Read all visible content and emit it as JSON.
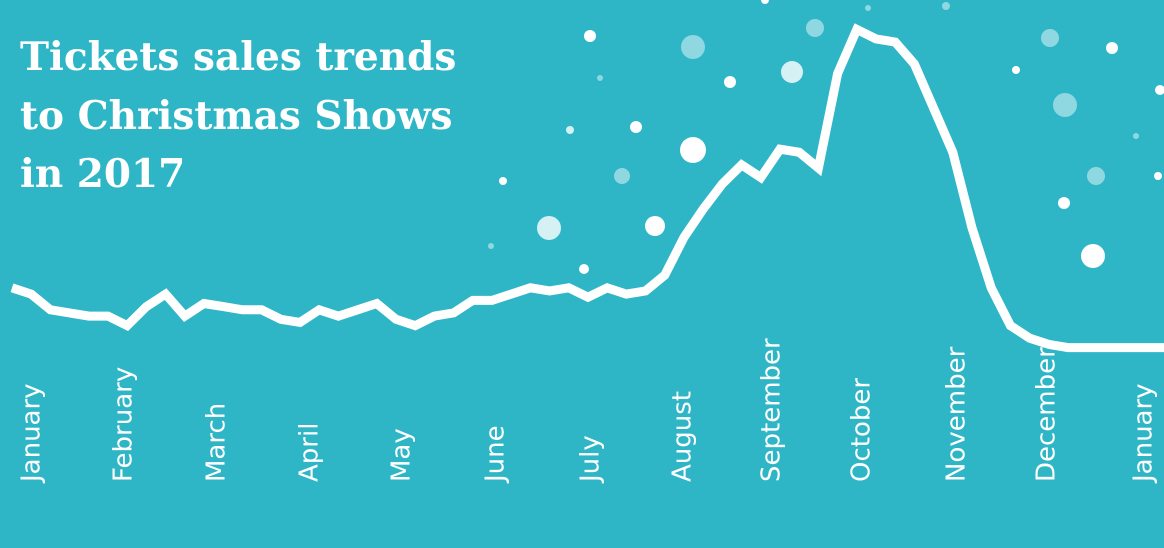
{
  "page": {
    "background": "#2fb6c6",
    "foreground": "#ffffff",
    "snow_colors": [
      "#ffffff",
      "#d5f1f4",
      "#8fd8e1",
      "#66cdd8"
    ]
  },
  "chart_data": {
    "type": "line",
    "title": "Tickets sales trends\nto Christmas Shows\nin 2017",
    "xlabel": "",
    "ylabel": "",
    "grid": false,
    "legend": "none",
    "tick_labels": [
      "January",
      "February",
      "March",
      "April",
      "May",
      "June",
      "July",
      "August",
      "September",
      "October",
      "November",
      "December",
      "January"
    ],
    "x_range": [
      0,
      12
    ],
    "ylim": [
      0,
      100
    ],
    "series": [
      {
        "x": [
          0,
          0.2,
          0.4,
          0.6,
          0.8,
          1,
          1.2,
          1.4,
          1.6,
          1.8,
          2,
          2.2,
          2.4,
          2.6,
          2.8,
          3,
          3.2,
          3.4,
          3.6,
          3.8,
          4,
          4.2,
          4.4,
          4.6,
          4.8,
          5,
          5.2,
          5.4,
          5.6,
          5.8,
          6,
          6.2,
          6.4,
          6.6,
          6.8,
          7,
          7.2,
          7.4,
          7.6,
          7.8,
          8,
          8.2,
          8.4,
          8.6,
          8.8,
          9,
          9.2,
          9.4,
          9.6,
          9.8,
          10,
          10.2,
          10.4,
          10.6,
          10.8,
          11,
          11.2,
          11.4,
          11.6,
          11.8,
          12
        ],
        "values": [
          15,
          13,
          8,
          7,
          6,
          6,
          3,
          9,
          13,
          6,
          10,
          9,
          8,
          8,
          5,
          4,
          8,
          6,
          8,
          10,
          5,
          3,
          6,
          7,
          11,
          11,
          13,
          15,
          14,
          15,
          12,
          15,
          13,
          14,
          19,
          31,
          40,
          48,
          54,
          50,
          59,
          58,
          53,
          83,
          97,
          94,
          93,
          86,
          72,
          58,
          34,
          15,
          3,
          -1,
          -3,
          -4,
          -4,
          -4,
          -4,
          -4,
          -4
        ]
      }
    ]
  }
}
